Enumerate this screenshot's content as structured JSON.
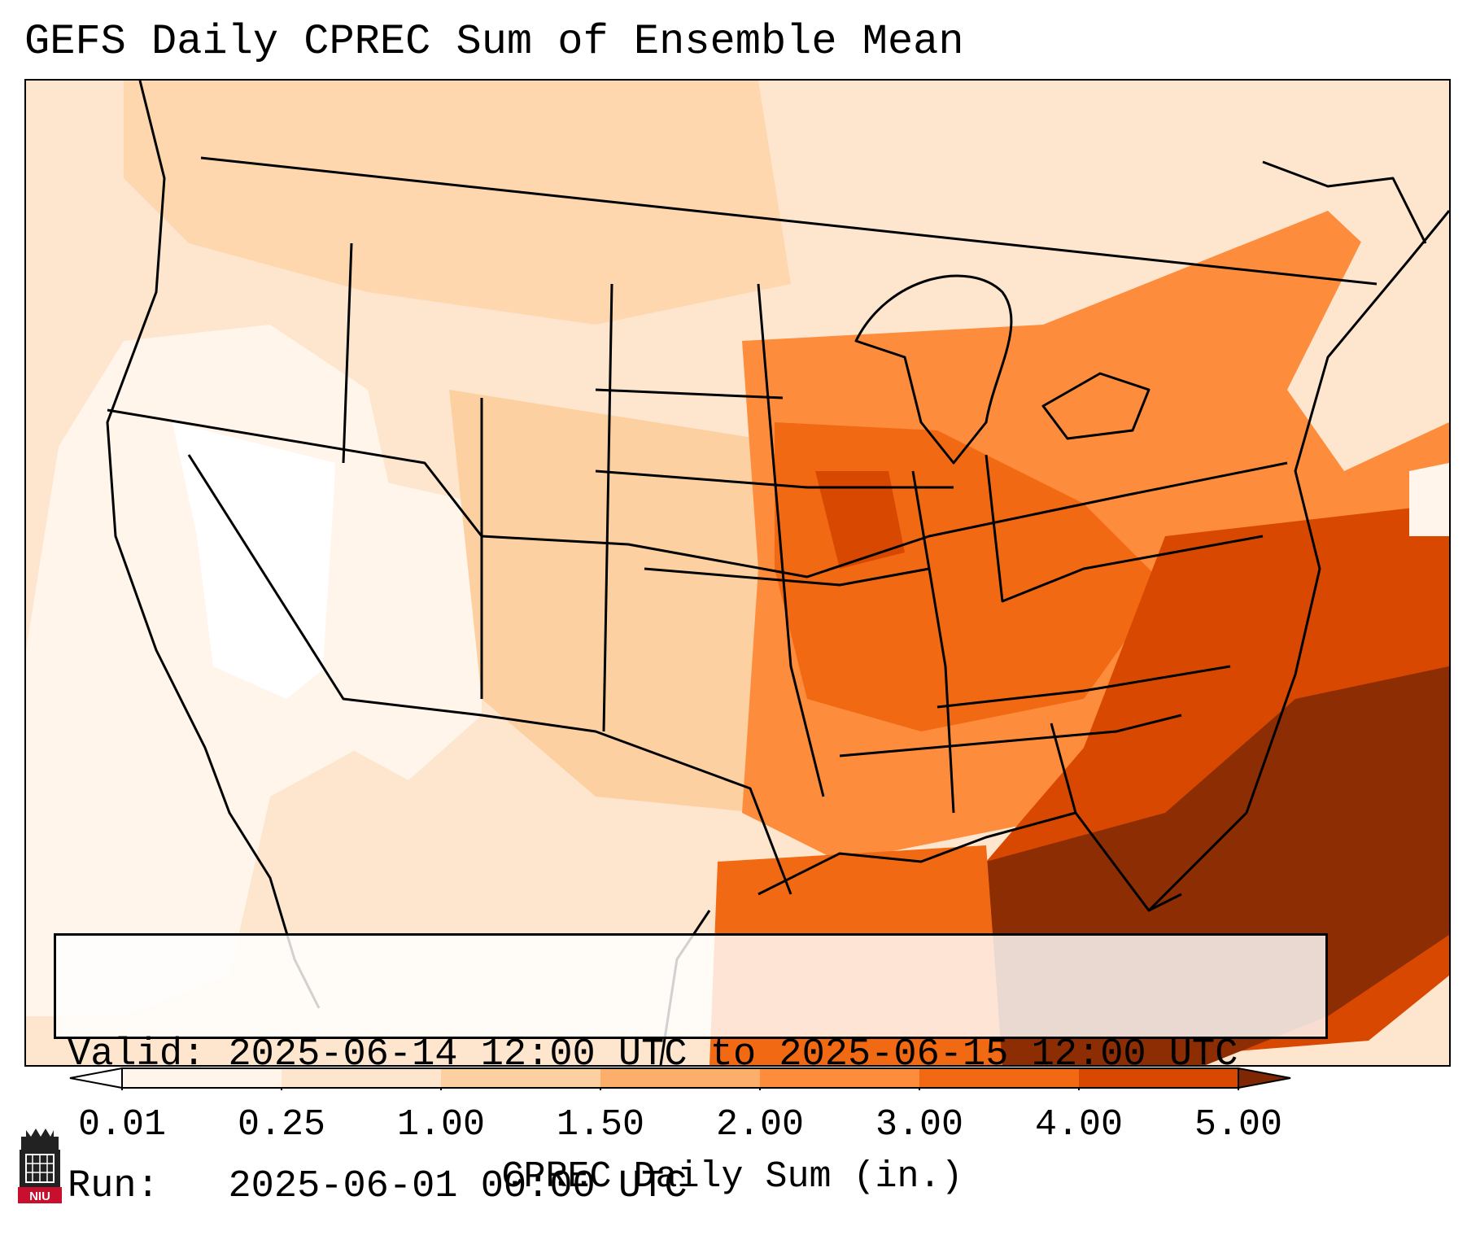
{
  "title": "GEFS Daily CPREC Sum of Ensemble Mean",
  "info": {
    "valid_label": "Valid:",
    "valid_value": "2025-06-14 12:00 UTC to 2025-06-15 12:00 UTC",
    "run_label": "Run:",
    "run_value": "2025-06-01 00:00 UTC"
  },
  "colorbar": {
    "label": "CPREC Daily Sum (in.)",
    "ticks": [
      "0.01",
      "0.25",
      "1.00",
      "1.50",
      "2.00",
      "3.00",
      "4.00",
      "5.00"
    ],
    "colors": [
      "#fff5eb",
      "#fee6ce",
      "#fdd0a2",
      "#fdae6b",
      "#fd8d3c",
      "#f16913",
      "#d94801",
      "#8c2d04"
    ],
    "under_color": "#ffffff",
    "over_color": "#7f2704"
  },
  "logo": {
    "text": "NIU",
    "colors": {
      "red": "#c8102e",
      "dark": "#222222"
    }
  },
  "icons": {
    "logo": "niu-tower-logo-icon"
  }
}
